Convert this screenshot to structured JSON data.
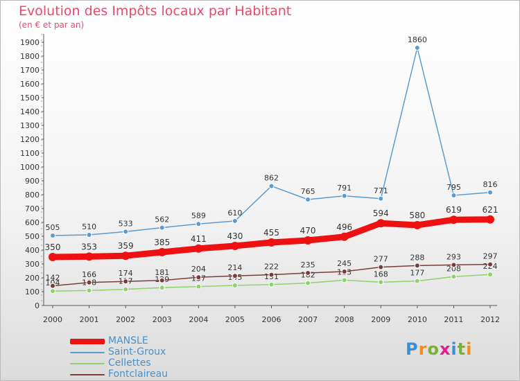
{
  "header": {
    "title": "Evolution des Impôts locaux par Habitant",
    "subtitle": "(en € et par an)"
  },
  "chart_data": {
    "type": "line",
    "x": [
      2000,
      2001,
      2002,
      2003,
      2004,
      2005,
      2006,
      2007,
      2008,
      2009,
      2010,
      2011,
      2012
    ],
    "ylim": [
      0,
      1900
    ],
    "yticks": [
      0,
      100,
      200,
      300,
      400,
      500,
      600,
      700,
      800,
      900,
      1000,
      1100,
      1200,
      1300,
      1400,
      1500,
      1600,
      1700,
      1800,
      1900
    ],
    "grid": false,
    "legend_position": "bottom-left",
    "series": [
      {
        "name": "Saint-Groux",
        "color": "#5b9bd0",
        "values": [
          505,
          510,
          533,
          562,
          589,
          610,
          862,
          765,
          791,
          771,
          1860,
          795,
          816
        ]
      },
      {
        "name": "Cellettes",
        "color": "#8fd16a",
        "values": [
          104,
          108,
          117,
          129,
          137,
          145,
          151,
          162,
          183,
          168,
          177,
          208,
          224
        ]
      },
      {
        "name": "Fontclaireau",
        "color": "#7a3b3b",
        "values": [
          142,
          166,
          174,
          181,
          204,
          214,
          222,
          235,
          245,
          277,
          288,
          293,
          297
        ]
      },
      {
        "name": "MANSLE",
        "color": "#ee1111",
        "values": [
          350,
          353,
          359,
          385,
          411,
          430,
          455,
          470,
          496,
          594,
          580,
          619,
          621
        ]
      }
    ],
    "legend_order": [
      "MANSLE",
      "Saint-Groux",
      "Cellettes",
      "Fontclaireau"
    ]
  },
  "branding": {
    "logo_text": "Proxiti",
    "letter_colors": [
      "#3a8fd9",
      "#f28c1c",
      "#7ab32e",
      "#e0218a",
      "#3a8fd9",
      "#7ab32e",
      "#f28c1c"
    ]
  }
}
